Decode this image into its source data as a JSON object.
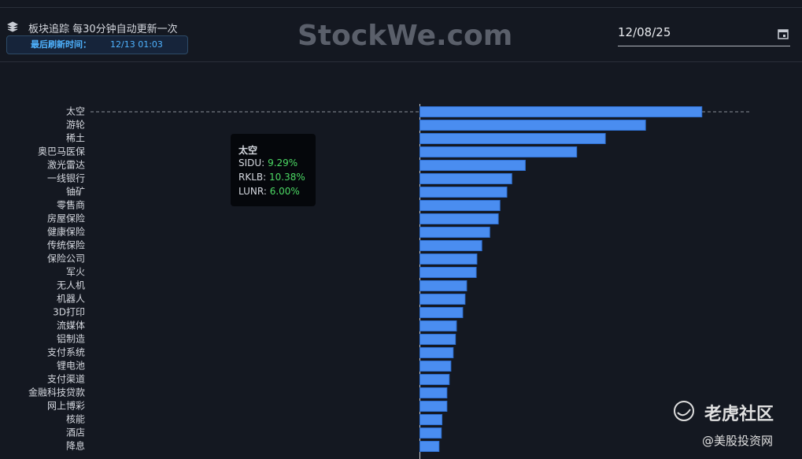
{
  "header": {
    "title": "板块追踪 每30分钟自动更新一次",
    "refresh_label": "最后刷新时间：",
    "refresh_time": "12/13 01:03",
    "brand": "StockWe.com",
    "date": "12/08/25"
  },
  "chart_data": {
    "type": "bar",
    "orientation": "horizontal",
    "color": "#4a8df0",
    "categories": [
      "太空",
      "游轮",
      "稀土",
      "奥巴马医保",
      "激光雷达",
      "一线银行",
      "铀矿",
      "零售商",
      "房屋保险",
      "健康保险",
      "传统保险",
      "保险公司",
      "军火",
      "无人机",
      "机器人",
      "3D打印",
      "流媒体",
      "铝制造",
      "支付系统",
      "锂电池",
      "支付渠道",
      "金融科技贷款",
      "网上博彩",
      "核能",
      "酒店",
      "降息"
    ],
    "values": [
      8.56,
      6.85,
      5.63,
      4.76,
      3.2,
      2.79,
      2.64,
      2.43,
      2.38,
      2.12,
      1.88,
      1.73,
      1.71,
      1.42,
      1.37,
      1.3,
      1.11,
      1.08,
      1.01,
      0.94,
      0.89,
      0.82,
      0.82,
      0.67,
      0.65,
      0.58
    ],
    "xlim": [
      -10,
      10
    ]
  },
  "tooltip": {
    "title": "太空",
    "items": [
      {
        "name": "SIDU:",
        "value": "9.29%"
      },
      {
        "name": "RKLB:",
        "value": "10.38%"
      },
      {
        "name": "LUNR:",
        "value": "6.00%"
      }
    ]
  },
  "watermark": {
    "logo": "老虎社区",
    "source": "@美股投资网"
  }
}
